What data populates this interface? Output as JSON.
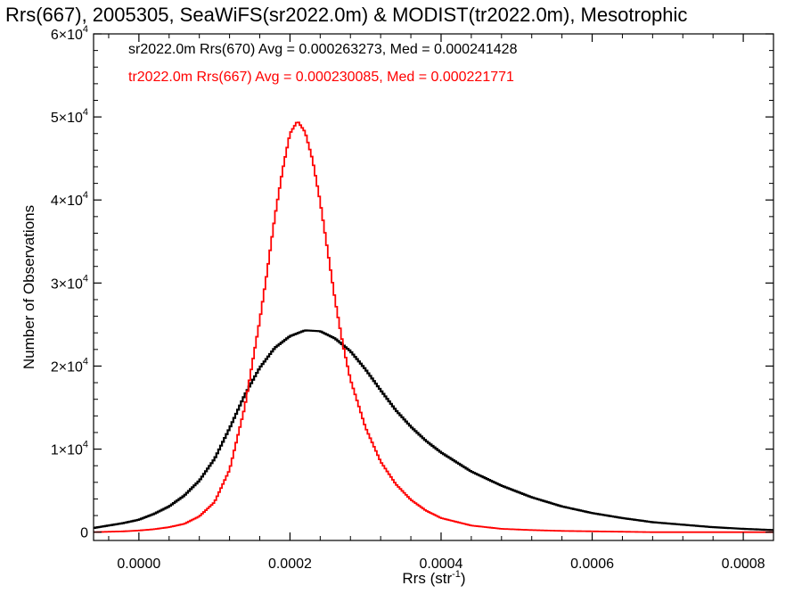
{
  "chart_data": {
    "type": "line",
    "title": "Rrs(667), 2005305, SeaWiFS(sr2022.0m) & MODIST(tr2022.0m), Mesotrophic",
    "xlabel": "Rrs (str",
    "xlabel_sup": "-1",
    "xlabel_end": ")",
    "ylabel": "Number of Observations",
    "xlim": [
      -6e-05,
      0.00084
    ],
    "ylim": [
      -1000,
      60000
    ],
    "x_ticks": [
      {
        "value": 0.0,
        "label": "0.0000"
      },
      {
        "value": 0.0002,
        "label": "0.0002"
      },
      {
        "value": 0.0004,
        "label": "0.0004"
      },
      {
        "value": 0.0006,
        "label": "0.0006"
      },
      {
        "value": 0.0008,
        "label": "0.0008"
      }
    ],
    "y_ticks": [
      {
        "value": 0,
        "label": "0",
        "sup": ""
      },
      {
        "value": 10000,
        "label": "1×10",
        "sup": "4"
      },
      {
        "value": 20000,
        "label": "2×10",
        "sup": "4"
      },
      {
        "value": 30000,
        "label": "3×10",
        "sup": "4"
      },
      {
        "value": 40000,
        "label": "4×10",
        "sup": "4"
      },
      {
        "value": 50000,
        "label": "5×10",
        "sup": "4"
      },
      {
        "value": 60000,
        "label": "6×10",
        "sup": "4"
      }
    ],
    "legend_position": "top-left",
    "grid": false,
    "series": [
      {
        "name": "sr2022.0m Rrs(670)",
        "label": "sr2022.0m Rrs(670) Avg = 0.000263273, Med = 0.000241428",
        "color": "#000000",
        "x": [
          -6e-05,
          -4e-05,
          -2e-05,
          0.0,
          2e-05,
          4e-05,
          6e-05,
          8e-05,
          0.0001,
          0.00012,
          0.00014,
          0.00016,
          0.00018,
          0.0002,
          0.00022,
          0.00024,
          0.00026,
          0.00028,
          0.0003,
          0.00032,
          0.00034,
          0.00036,
          0.00038,
          0.0004,
          0.00044,
          0.00048,
          0.00052,
          0.00056,
          0.0006,
          0.00064,
          0.00068,
          0.00072,
          0.00076,
          0.0008,
          0.00084
        ],
        "y": [
          500,
          800,
          1100,
          1500,
          2200,
          3100,
          4400,
          6200,
          8800,
          12500,
          16500,
          19800,
          22200,
          23600,
          24300,
          24200,
          23300,
          21800,
          19600,
          17100,
          14700,
          12700,
          11000,
          9600,
          7300,
          5600,
          4200,
          3100,
          2300,
          1700,
          1200,
          900,
          600,
          400,
          250
        ]
      },
      {
        "name": "tr2022.0m Rrs(667)",
        "label": "tr2022.0m Rrs(667) Avg = 0.000230085, Med = 0.000221771",
        "color": "#ff0000",
        "x": [
          -6e-05,
          -4e-05,
          -2e-05,
          0.0,
          2e-05,
          4e-05,
          6e-05,
          8e-05,
          0.0001,
          0.00012,
          0.00014,
          0.00016,
          0.00017,
          0.00018,
          0.00019,
          0.0002,
          0.00021,
          0.00022,
          0.00023,
          0.00024,
          0.00025,
          0.00026,
          0.00027,
          0.00028,
          0.0003,
          0.00032,
          0.00034,
          0.00036,
          0.00038,
          0.0004,
          0.00044,
          0.00048,
          0.00052,
          0.00056,
          0.0006,
          0.00064,
          0.00068,
          0.00072,
          0.00076,
          0.0008,
          0.00084
        ],
        "y": [
          0,
          50,
          100,
          200,
          350,
          600,
          1000,
          1900,
          3600,
          7500,
          15000,
          25500,
          31500,
          38000,
          43500,
          48000,
          49500,
          48200,
          44800,
          39800,
          33800,
          27800,
          22600,
          18400,
          12600,
          8500,
          5800,
          3900,
          2600,
          1700,
          800,
          400,
          250,
          150,
          100,
          50,
          0,
          0,
          0,
          0,
          0
        ]
      }
    ]
  }
}
